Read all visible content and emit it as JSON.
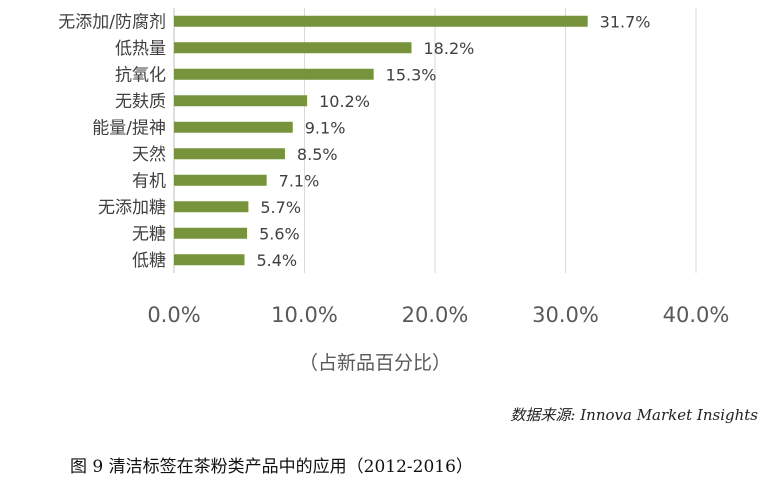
{
  "chart_data": {
    "type": "bar",
    "orientation": "horizontal",
    "categories": [
      "无添加/防腐剂",
      "低热量",
      "抗氧化",
      "无麸质",
      "能量/提神",
      "天然",
      "有机",
      "无添加糖",
      "无糖",
      "低糖"
    ],
    "values": [
      31.7,
      18.2,
      15.3,
      10.2,
      9.1,
      8.5,
      7.1,
      5.7,
      5.6,
      5.4
    ],
    "data_labels": [
      "31.7%",
      "18.2%",
      "15.3%",
      "10.2%",
      "9.1%",
      "8.5%",
      "7.1%",
      "5.7%",
      "5.6%",
      "5.4%"
    ],
    "x_ticks": [
      0,
      10,
      20,
      30,
      40
    ],
    "x_tick_labels": [
      "0.0%",
      "10.0%",
      "20.0%",
      "30.0%",
      "40.0%"
    ],
    "xlim": [
      0,
      40
    ],
    "xlabel": "（占新品百分比）",
    "grid": "vertical",
    "bar_color": "#77933c"
  },
  "source": "数据来源: Innova Market Insights",
  "caption": "图 9 清洁标签在茶粉类产品中的应用（2012-2016）"
}
